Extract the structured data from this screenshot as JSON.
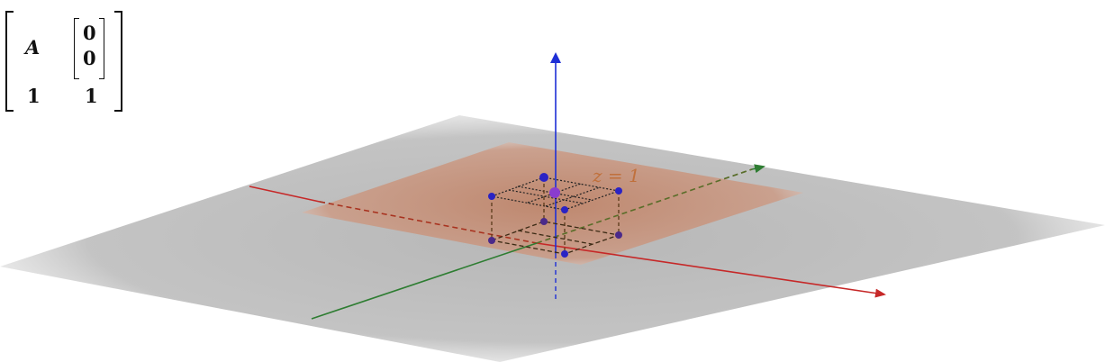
{
  "matrix": {
    "row1_col1": "A",
    "row1_col2_top": "0",
    "row1_col2_bottom": "0",
    "row2_col1": "1",
    "row2_col2": "1"
  },
  "plane_label": "z = 1",
  "colors": {
    "x_axis": "#c62828",
    "y_axis": "#2e7d32",
    "z_axis": "#1e2fd6",
    "plane_fill": "#c58f72",
    "plane_label": "#c06a30",
    "floor": "#b5b5b5",
    "point": "#2a23c4",
    "point_dark": "#4b2a8a",
    "highlight_point": "#8a3ccf",
    "box_edge": "#5a3a1a"
  }
}
